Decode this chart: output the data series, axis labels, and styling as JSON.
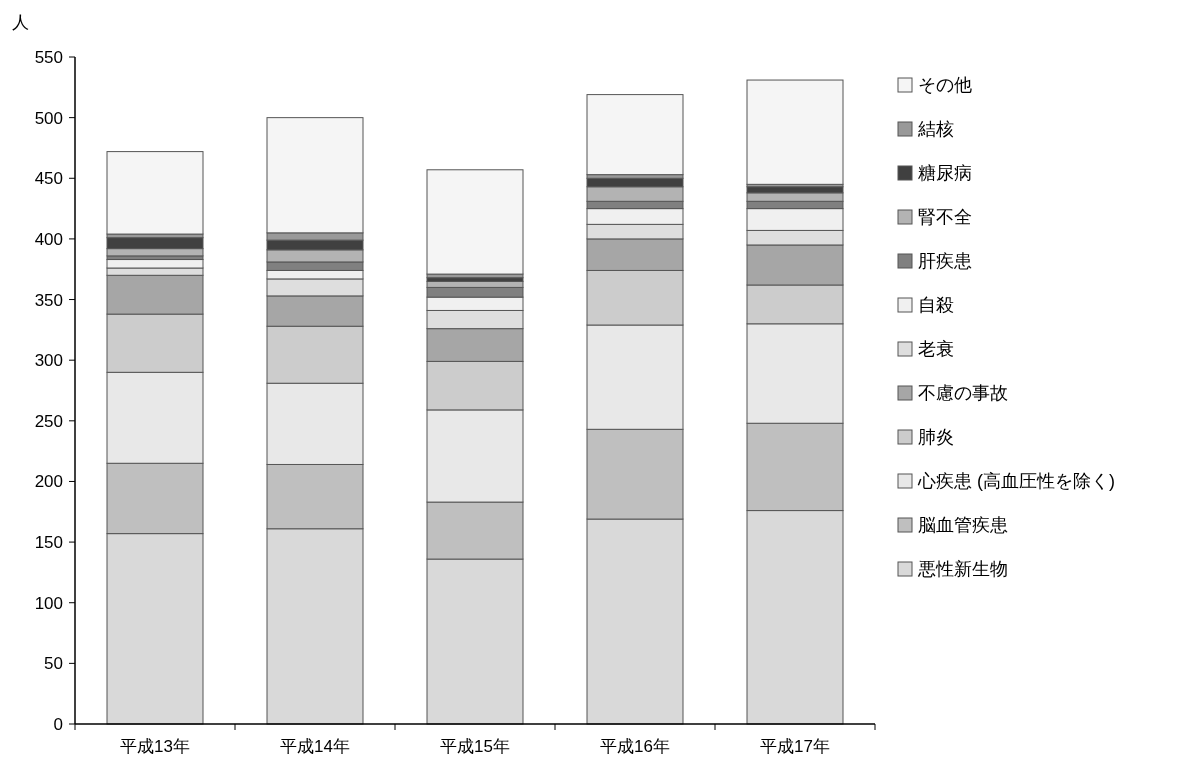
{
  "chart_data": {
    "type": "bar",
    "stacked": true,
    "ylabel": "人",
    "categories": [
      "平成13年",
      "平成14年",
      "平成15年",
      "平成16年",
      "平成17年"
    ],
    "ylim": [
      0,
      550
    ],
    "yticks": [
      0,
      50,
      100,
      150,
      200,
      250,
      300,
      350,
      400,
      450,
      500,
      550
    ],
    "grid": false,
    "legend": "right",
    "series": [
      {
        "name": "悪性新生物",
        "color": "#d9d9d9",
        "values": [
          157,
          161,
          136,
          169,
          176
        ]
      },
      {
        "name": "脳血管疾患",
        "color": "#bfbfbf",
        "values": [
          58,
          53,
          47,
          74,
          72
        ]
      },
      {
        "name": "心疾患 (高血圧性を除く)",
        "color": "#e8e8e8",
        "values": [
          75,
          67,
          76,
          86,
          82
        ]
      },
      {
        "name": "肺炎",
        "color": "#cccccc",
        "values": [
          48,
          47,
          40,
          45,
          32
        ]
      },
      {
        "name": "不慮の事故",
        "color": "#a6a6a6",
        "values": [
          32,
          25,
          27,
          26,
          33
        ]
      },
      {
        "name": "老衰",
        "color": "#dedede",
        "values": [
          6,
          14,
          15,
          12,
          12
        ]
      },
      {
        "name": "自殺",
        "color": "#f0f0f0",
        "values": [
          7,
          7,
          11,
          13,
          18
        ]
      },
      {
        "name": "肝疾患",
        "color": "#808080",
        "values": [
          3,
          7,
          8,
          6,
          6
        ]
      },
      {
        "name": "腎不全",
        "color": "#b3b3b3",
        "values": [
          6,
          10,
          5,
          12,
          7
        ]
      },
      {
        "name": "糖尿病",
        "color": "#404040",
        "values": [
          9,
          8,
          3,
          7,
          5
        ]
      },
      {
        "name": "結核",
        "color": "#999999",
        "values": [
          3,
          6,
          3,
          3,
          2
        ]
      },
      {
        "name": "その他",
        "color": "#f5f5f5",
        "values": [
          68,
          95,
          86,
          66,
          86
        ]
      }
    ]
  }
}
